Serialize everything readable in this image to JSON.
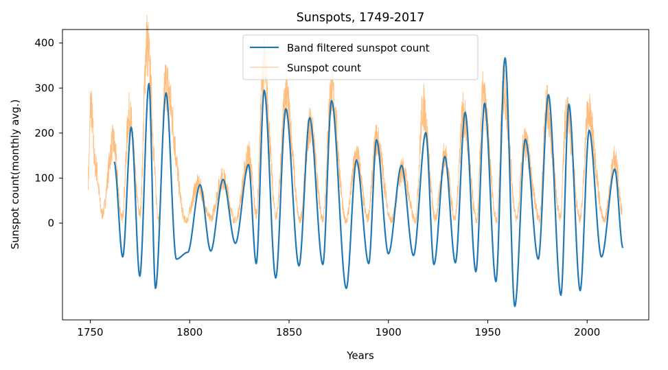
{
  "chart_data": {
    "type": "line",
    "title": "Sunspots, 1749-2017",
    "xlabel": "Years",
    "ylabel": "Sunspot count(monthly avg.)",
    "xlim": [
      1736,
      2031
    ],
    "ylim": [
      -215,
      430
    ],
    "xticks": [
      1750,
      1800,
      1850,
      1900,
      1950,
      2000
    ],
    "yticks": [
      0,
      100,
      200,
      300,
      400
    ],
    "grid": false,
    "legend_position": "upper center",
    "colors": {
      "filtered": "#1f77b4",
      "raw": "#ffbb78"
    },
    "series": [
      {
        "name": "Band filtered sunspot count",
        "x": [
          1762.0,
          1766.3,
          1770.6,
          1774.9,
          1779.5,
          1782.8,
          1788.1,
          1793.3,
          1799.0,
          1805.2,
          1810.6,
          1816.8,
          1823.0,
          1829.6,
          1833.5,
          1837.5,
          1843.3,
          1848.4,
          1855.0,
          1860.4,
          1867.0,
          1871.4,
          1878.8,
          1883.9,
          1890.1,
          1894.0,
          1900.0,
          1906.6,
          1912.6,
          1918.8,
          1922.9,
          1928.4,
          1933.7,
          1938.6,
          1944.0,
          1948.4,
          1954.1,
          1958.7,
          1963.6,
          1968.9,
          1975.4,
          1980.5,
          1986.8,
          1990.8,
          1996.5,
          2001.0,
          2007.2,
          2013.9,
          2018.0
        ],
        "y": [
          136,
          -75,
          213,
          -118,
          310,
          -145,
          289,
          -80,
          -65,
          85,
          -62,
          97,
          -45,
          130,
          -90,
          295,
          -122,
          254,
          -95,
          234,
          -92,
          272,
          -145,
          140,
          -90,
          185,
          -68,
          128,
          -72,
          201,
          -92,
          148,
          -88,
          246,
          -108,
          266,
          -130,
          367,
          -185,
          186,
          -80,
          285,
          -160,
          264,
          -150,
          206,
          -75,
          120,
          -55
        ]
      },
      {
        "name": "Sunspot count",
        "x": [
          1749.0,
          1750.2,
          1752.5,
          1756.0,
          1761.5,
          1766.0,
          1769.5,
          1775.0,
          1778.4,
          1784.5,
          1787.9,
          1798.0,
          1804.2,
          1810.5,
          1816.5,
          1823.0,
          1829.8,
          1833.5,
          1837.2,
          1843.5,
          1848.5,
          1855.5,
          1860.5,
          1867.0,
          1871.2,
          1878.5,
          1884.0,
          1889.5,
          1894.0,
          1901.5,
          1907.0,
          1913.5,
          1917.5,
          1923.5,
          1928.5,
          1933.5,
          1937.5,
          1944.5,
          1947.5,
          1954.5,
          1957.8,
          1964.5,
          1968.5,
          1976.0,
          1979.5,
          1986.5,
          1989.5,
          1996.5,
          2000.5,
          2008.5,
          2014.0,
          2017.5
        ],
        "y": [
          100,
          265,
          130,
          20,
          180,
          10,
          240,
          20,
          399,
          10,
          310,
          5,
          85,
          10,
          100,
          5,
          150,
          20,
          350,
          15,
          280,
          5,
          220,
          10,
          296,
          5,
          150,
          10,
          185,
          5,
          120,
          5,
          260,
          10,
          150,
          10,
          240,
          5,
          280,
          5,
          300,
          10,
          180,
          10,
          260,
          15,
          250,
          10,
          245,
          5,
          145,
          30
        ]
      }
    ]
  }
}
